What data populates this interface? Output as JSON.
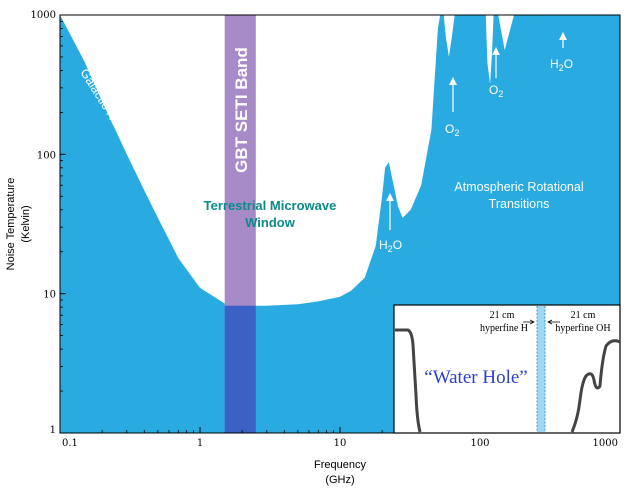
{
  "chart_data": {
    "type": "area",
    "x_scale": "log",
    "y_scale": "log",
    "xlim": [
      0.1,
      1000
    ],
    "ylim": [
      1,
      1000
    ],
    "x_ticks": [
      "0.1",
      "1",
      "10",
      "100",
      "1000"
    ],
    "y_ticks": [
      "1",
      "10",
      "100",
      "1000"
    ],
    "xlabel_line1": "Frequency",
    "xlabel_line2": "(GHz)",
    "ylabel_line1": "Noise Temperature",
    "ylabel_line2": "(Kelvin)",
    "grid": false,
    "series": [
      {
        "points": [
          [
            0.1,
            1000
          ],
          [
            0.15,
            460
          ],
          [
            0.2,
            240
          ],
          [
            0.3,
            100
          ],
          [
            0.4,
            55
          ],
          [
            0.5,
            35
          ],
          [
            0.7,
            18
          ],
          [
            1.0,
            11
          ],
          [
            1.5,
            8.5
          ],
          [
            2.0,
            8.2
          ],
          [
            3,
            8.2
          ],
          [
            5,
            8.4
          ],
          [
            7,
            8.8
          ],
          [
            10,
            9.5
          ],
          [
            12,
            10.5
          ],
          [
            15,
            13
          ],
          [
            18,
            22
          ],
          [
            20,
            50
          ],
          [
            21,
            80
          ],
          [
            22.3,
            88
          ],
          [
            24,
            62
          ],
          [
            26,
            42
          ],
          [
            28,
            35
          ],
          [
            32,
            40
          ],
          [
            38,
            60
          ],
          [
            45,
            150
          ],
          [
            50,
            800
          ],
          [
            52,
            1000
          ],
          [
            55,
            1000
          ],
          [
            57,
            700
          ],
          [
            60,
            500
          ],
          [
            63,
            700
          ],
          [
            66,
            1000
          ],
          [
            110,
            1000
          ],
          [
            113,
            450
          ],
          [
            118,
            320
          ],
          [
            122,
            550
          ],
          [
            125,
            1000
          ],
          [
            135,
            1000
          ],
          [
            150,
            560
          ],
          [
            165,
            800
          ],
          [
            175,
            1000
          ],
          [
            1000,
            1000
          ]
        ]
      }
    ],
    "band": {
      "label": "GBT SETI Band",
      "x_range": [
        1.5,
        2.5
      ]
    },
    "annotations": {
      "galactic": "Galactic Non-Thermal Background",
      "window_line1": "Terrestrial Microwave",
      "window_line2": "Window",
      "atmos_line1": "Atmospheric Rotational",
      "atmos_line2": "Transitions",
      "h2o_1_base": "H",
      "h2o_1_sub": "2",
      "h2o_1_end": "O",
      "o2_1_base": "O",
      "o2_1_sub": "2",
      "o2_2_base": "O",
      "o2_2_sub": "2",
      "h2o_2_base": "H",
      "h2o_2_sub": "2",
      "h2o_2_end": "O"
    },
    "inset": {
      "h_line1": "21 cm",
      "h_line2": "hyperfine H",
      "oh_line1": "21 cm",
      "oh_line2": "hyperfine OH",
      "water_hole": "“Water Hole”"
    },
    "colors": {
      "fill": "#29abe2",
      "band": "#a78bc8",
      "band_overlap": "#3a62c4",
      "teal": "#0b8a8a",
      "water_hole": "#2b3fd6"
    }
  }
}
